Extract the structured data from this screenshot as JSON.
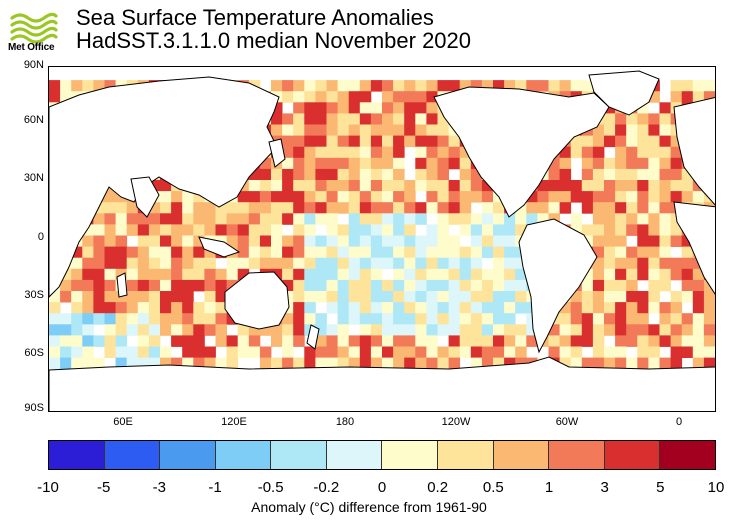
{
  "header": {
    "logo_text": "Met Office",
    "title_line1": "Sea Surface Temperature Anomalies",
    "title_line2": "HadSST.3.1.1.0 median November 2020"
  },
  "map": {
    "lat_labels": [
      "90N",
      "60N",
      "30N",
      "0",
      "30S",
      "60S",
      "90S"
    ],
    "lon_labels": [
      "60E",
      "120E",
      "180",
      "120W",
      "60W",
      "0"
    ]
  },
  "colorbar": {
    "colors": [
      "#2b1ed6",
      "#2d5cf2",
      "#4a9af0",
      "#7dcdf7",
      "#aee8f7",
      "#dcf6fa",
      "#fffccb",
      "#fde49a",
      "#fbb873",
      "#f27a58",
      "#da2f2f",
      "#a3001f"
    ],
    "tick_labels": [
      "-10",
      "-5",
      "-3",
      "-1",
      "-0.5",
      "-0.2",
      "0",
      "0.2",
      "0.5",
      "1",
      "3",
      "5",
      "10"
    ],
    "caption": "Anomaly (°C) difference from 1961-90"
  }
}
